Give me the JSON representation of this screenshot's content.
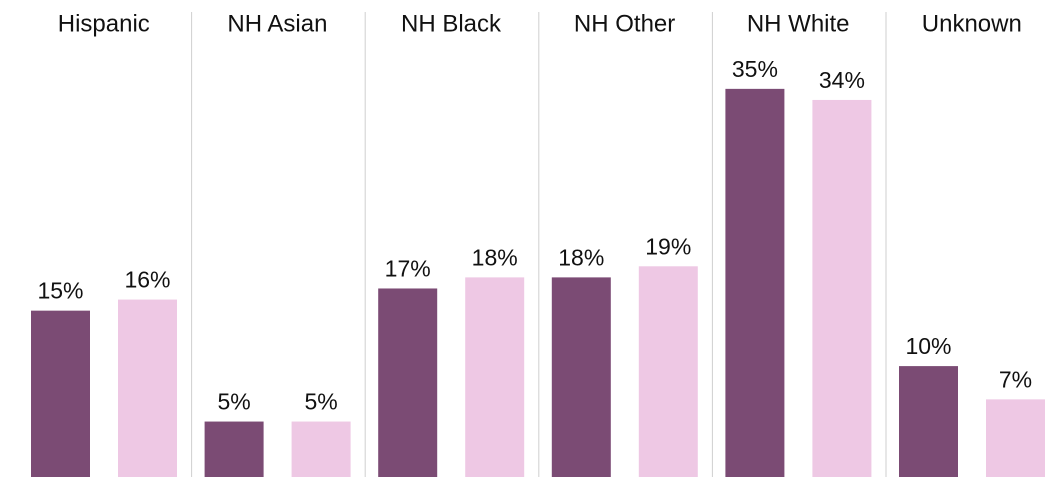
{
  "chart_data": {
    "type": "bar",
    "categories": [
      "Hispanic",
      "NH Asian",
      "NH Black",
      "NH Other",
      "NH White",
      "Unknown"
    ],
    "series": [
      {
        "color": "#7b4b74",
        "values": [
          15,
          5,
          17,
          18,
          35,
          10
        ],
        "value_labels": [
          "15%",
          "5%",
          "17%",
          "18%",
          "35%",
          "10%"
        ]
      },
      {
        "color": "#eec8e4",
        "values": [
          16,
          5,
          18,
          19,
          34,
          7
        ],
        "value_labels": [
          "16%",
          "5%",
          "18%",
          "19%",
          "34%",
          "7%"
        ]
      }
    ],
    "ylim": [
      0,
      39
    ]
  }
}
